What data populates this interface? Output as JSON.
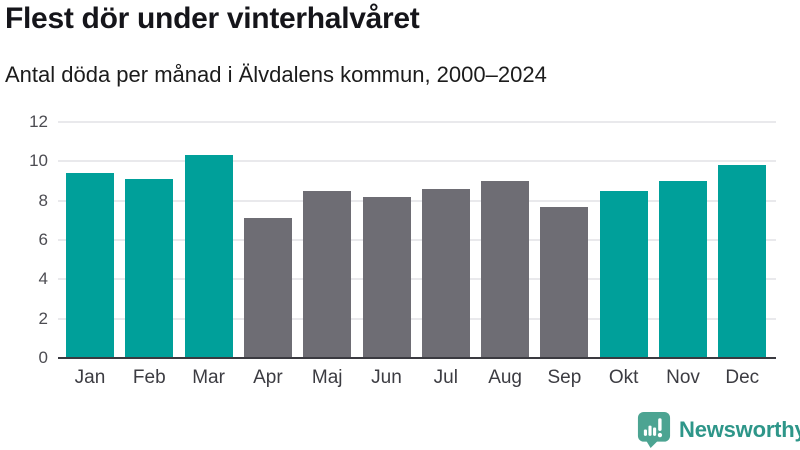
{
  "chart_data": {
    "type": "bar",
    "title": "Flest dör under vinterhalvåret",
    "subtitle": "Antal döda per månad i Älvdalens kommun, 2000–2024",
    "categories": [
      "Jan",
      "Feb",
      "Mar",
      "Apr",
      "Maj",
      "Jun",
      "Jul",
      "Aug",
      "Sep",
      "Okt",
      "Nov",
      "Dec"
    ],
    "values": [
      9.4,
      9.1,
      10.3,
      7.1,
      8.5,
      8.2,
      8.6,
      9.0,
      7.7,
      8.5,
      9.0,
      9.8
    ],
    "bar_groups": [
      "winter",
      "winter",
      "winter",
      "summer",
      "summer",
      "summer",
      "summer",
      "summer",
      "summer",
      "winter",
      "winter",
      "winter"
    ],
    "group_colors": {
      "winter": "#00a09a",
      "summer": "#6e6d74"
    },
    "xlabel": "",
    "ylabel": "",
    "ylim": [
      0,
      12
    ],
    "yticks": [
      0,
      2,
      4,
      6,
      8,
      10,
      12
    ],
    "grid": "horizontal-light",
    "legend": "none"
  },
  "branding": {
    "logo_text": "Newsworthy",
    "logo_text_color": "#2e9689",
    "logo_icon_color": "#4ca492",
    "logo_icon": "newsworthy-bar-chart-speech-bubble"
  }
}
